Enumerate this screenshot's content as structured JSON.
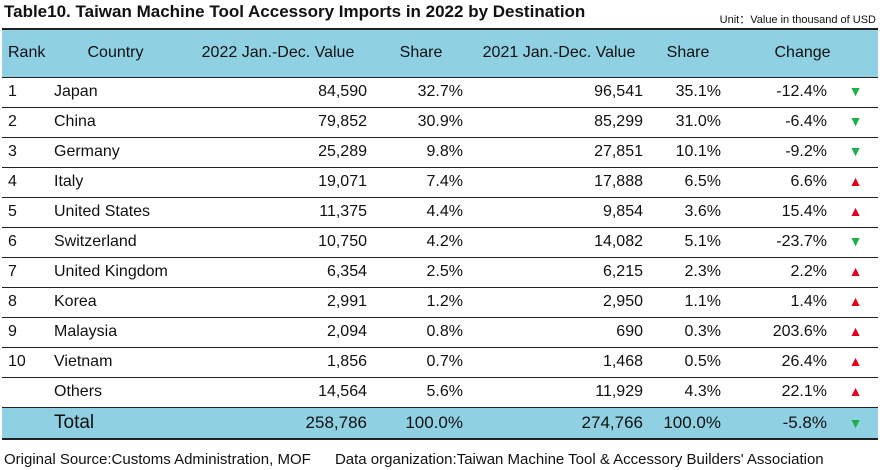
{
  "title": "Table10. Taiwan Machine Tool Accessory Imports in 2022 by Destination",
  "unit": "Unit：Value in thousand of USD",
  "headers": {
    "rank": "Rank",
    "country": "Country",
    "value_2022": "2022 Jan.-Dec. Value",
    "share_2022": "Share",
    "value_2021": "2021 Jan.-Dec. Value",
    "share_2021": "Share",
    "change": "Change"
  },
  "rows": [
    {
      "rank": "1",
      "country": "Japan",
      "value_2022": "84,590",
      "share_2022": "32.7%",
      "value_2021": "96,541",
      "share_2021": "35.1%",
      "change": "-12.4%",
      "arrow": "▼",
      "trend": "down"
    },
    {
      "rank": "2",
      "country": "China",
      "value_2022": "79,852",
      "share_2022": "30.9%",
      "value_2021": "85,299",
      "share_2021": "31.0%",
      "change": "-6.4%",
      "arrow": "▼",
      "trend": "down"
    },
    {
      "rank": "3",
      "country": "Germany",
      "value_2022": "25,289",
      "share_2022": "9.8%",
      "value_2021": "27,851",
      "share_2021": "10.1%",
      "change": "-9.2%",
      "arrow": "▼",
      "trend": "down"
    },
    {
      "rank": "4",
      "country": "Italy",
      "value_2022": "19,071",
      "share_2022": "7.4%",
      "value_2021": "17,888",
      "share_2021": "6.5%",
      "change": "6.6%",
      "arrow": "▲",
      "trend": "up"
    },
    {
      "rank": "5",
      "country": "United States",
      "value_2022": "11,375",
      "share_2022": "4.4%",
      "value_2021": "9,854",
      "share_2021": "3.6%",
      "change": "15.4%",
      "arrow": "▲",
      "trend": "up"
    },
    {
      "rank": "6",
      "country": "Switzerland",
      "value_2022": "10,750",
      "share_2022": "4.2%",
      "value_2021": "14,082",
      "share_2021": "5.1%",
      "change": "-23.7%",
      "arrow": "▼",
      "trend": "down"
    },
    {
      "rank": "7",
      "country": "United Kingdom",
      "value_2022": "6,354",
      "share_2022": "2.5%",
      "value_2021": "6,215",
      "share_2021": "2.3%",
      "change": "2.2%",
      "arrow": "▲",
      "trend": "up"
    },
    {
      "rank": "8",
      "country": "Korea",
      "value_2022": "2,991",
      "share_2022": "1.2%",
      "value_2021": "2,950",
      "share_2021": "1.1%",
      "change": "1.4%",
      "arrow": "▲",
      "trend": "up"
    },
    {
      "rank": "9",
      "country": "Malaysia",
      "value_2022": "2,094",
      "share_2022": "0.8%",
      "value_2021": "690",
      "share_2021": "0.3%",
      "change": "203.6%",
      "arrow": "▲",
      "trend": "up"
    },
    {
      "rank": "10",
      "country": "Vietnam",
      "value_2022": "1,856",
      "share_2022": "0.7%",
      "value_2021": "1,468",
      "share_2021": "0.5%",
      "change": "26.4%",
      "arrow": "▲",
      "trend": "up"
    },
    {
      "rank": "",
      "country": "Others",
      "value_2022": "14,564",
      "share_2022": "5.6%",
      "value_2021": "11,929",
      "share_2021": "4.3%",
      "change": "22.1%",
      "arrow": "▲",
      "trend": "up"
    }
  ],
  "total": {
    "label": "Total",
    "value_2022": "258,786",
    "share_2022": "100.0%",
    "value_2021": "274,766",
    "share_2021": "100.0%",
    "change": "-5.8%",
    "arrow": "▼",
    "trend": "down"
  },
  "footer": {
    "source": "Original Source:Customs Administration, MOF",
    "organization": "Data organization:Taiwan Machine Tool & Accessory Builders' Association"
  },
  "colors": {
    "header_bg": "#8fd0e3",
    "up_arrow": "#e3001b",
    "down_arrow": "#1db04a"
  }
}
